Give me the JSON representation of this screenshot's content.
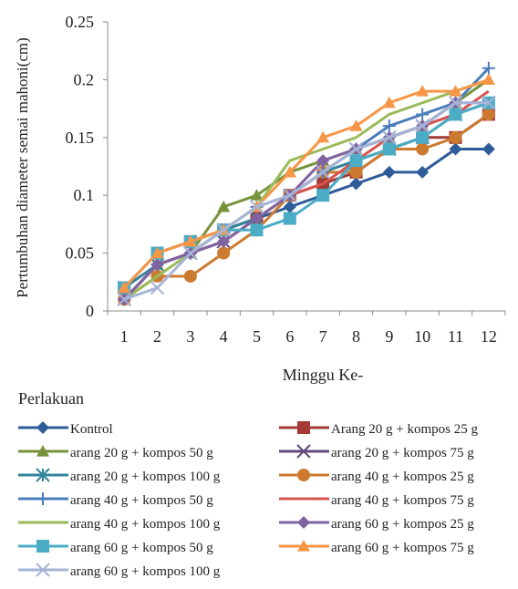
{
  "chart_data": {
    "type": "line",
    "title": "",
    "xlabel": "Minggu Ke-",
    "ylabel": "Pertumbuhan diameter semai mahoni(cm)",
    "x": [
      1,
      2,
      3,
      4,
      5,
      6,
      7,
      8,
      9,
      10,
      11,
      12
    ],
    "ylim": [
      0,
      0.25
    ],
    "yticks": [
      "0",
      "0.05",
      "0.1",
      "0.15",
      "0.2",
      "0.25"
    ],
    "grid": false,
    "legend_title": "Perlakuan",
    "legend_position": "bottom",
    "series": [
      {
        "name": "Kontrol",
        "color": "#2E5C99",
        "marker": "diamond",
        "values": [
          0.01,
          0.04,
          0.05,
          0.07,
          0.08,
          0.09,
          0.1,
          0.11,
          0.12,
          0.12,
          0.14,
          0.14
        ]
      },
      {
        "name": "Arang 20 g + kompos 25 g",
        "color": "#A33A36",
        "marker": "square",
        "values": [
          0.02,
          0.05,
          0.06,
          0.07,
          0.08,
          0.1,
          0.11,
          0.12,
          0.14,
          0.15,
          0.15,
          0.17
        ]
      },
      {
        "name": "arang 20 g + kompos 50 g",
        "color": "#77933C",
        "marker": "triangle",
        "values": [
          0.01,
          0.04,
          0.05,
          0.09,
          0.1,
          0.12,
          0.13,
          0.14,
          0.15,
          0.16,
          0.18,
          0.2
        ]
      },
      {
        "name": "arang 20 g + kompos 75 g",
        "color": "#604A7B",
        "marker": "x",
        "values": [
          0.01,
          0.04,
          0.05,
          0.06,
          0.08,
          0.1,
          0.12,
          0.14,
          0.15,
          0.16,
          0.17,
          0.18
        ]
      },
      {
        "name": "arang 20 g + kompos 100 g",
        "color": "#31849B",
        "marker": "star",
        "values": [
          0.02,
          0.04,
          0.05,
          0.07,
          0.08,
          0.1,
          0.12,
          0.13,
          0.14,
          0.15,
          0.17,
          0.18
        ]
      },
      {
        "name": "arang 40 g + kompos 25 g",
        "color": "#CC7A30",
        "marker": "circle",
        "values": [
          0.01,
          0.03,
          0.03,
          0.05,
          0.07,
          0.1,
          0.12,
          0.12,
          0.14,
          0.14,
          0.15,
          0.17
        ]
      },
      {
        "name": "arang 40 g + kompos 50 g",
        "color": "#4A7EBB",
        "marker": "plus",
        "values": [
          0.01,
          0.04,
          0.05,
          0.07,
          0.09,
          0.1,
          0.12,
          0.14,
          0.16,
          0.17,
          0.18,
          0.21
        ]
      },
      {
        "name": "arang 40 g + kompos 75 g",
        "color": "#D9534F",
        "marker": "none",
        "values": [
          0.01,
          0.04,
          0.05,
          0.06,
          0.08,
          0.1,
          0.11,
          0.13,
          0.15,
          0.16,
          0.17,
          0.19
        ]
      },
      {
        "name": "arang 40 g + kompos 100 g",
        "color": "#9BBB59",
        "marker": "none",
        "values": [
          0.01,
          0.03,
          0.05,
          0.07,
          0.09,
          0.13,
          0.14,
          0.15,
          0.17,
          0.18,
          0.19,
          0.2
        ]
      },
      {
        "name": "arang 60 g + kompos 25 g",
        "color": "#8064A2",
        "marker": "diamond",
        "values": [
          0.01,
          0.04,
          0.05,
          0.06,
          0.08,
          0.1,
          0.13,
          0.14,
          0.15,
          0.16,
          0.18,
          0.18
        ]
      },
      {
        "name": "arang 60 g + kompos 50 g",
        "color": "#4BACC6",
        "marker": "square",
        "values": [
          0.02,
          0.05,
          0.06,
          0.07,
          0.07,
          0.08,
          0.1,
          0.13,
          0.14,
          0.15,
          0.17,
          0.18
        ]
      },
      {
        "name": "arang 60 g + kompos 75 g",
        "color": "#F79646",
        "marker": "triangle",
        "values": [
          0.02,
          0.05,
          0.06,
          0.07,
          0.09,
          0.12,
          0.15,
          0.16,
          0.18,
          0.19,
          0.19,
          0.2
        ]
      },
      {
        "name": "arang 60 g + kompos 100 g",
        "color": "#A5B4D6",
        "marker": "x",
        "values": [
          0.01,
          0.02,
          0.05,
          0.07,
          0.09,
          0.1,
          0.12,
          0.14,
          0.15,
          0.16,
          0.18,
          0.18
        ]
      }
    ]
  }
}
